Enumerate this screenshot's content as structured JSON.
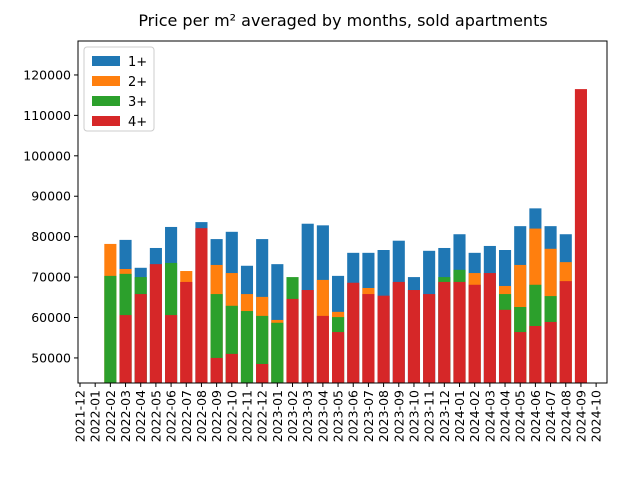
{
  "chart_data": {
    "type": "bar",
    "title": "Price per m² averaged by months, sold apartments",
    "categories": [
      "2021-12",
      "2022-01",
      "2022-02",
      "2022-03",
      "2022-04",
      "2022-05",
      "2022-06",
      "2022-07",
      "2022-08",
      "2022-09",
      "2022-10",
      "2022-11",
      "2022-12",
      "2023-01",
      "2023-02",
      "2023-03",
      "2023-04",
      "2023-05",
      "2023-06",
      "2023-07",
      "2023-08",
      "2023-09",
      "2023-10",
      "2023-11",
      "2023-12",
      "2024-01",
      "2024-02",
      "2024-03",
      "2024-04",
      "2024-05",
      "2024-06",
      "2024-07",
      "2024-08",
      "2024-09",
      "2024-10"
    ],
    "series": [
      {
        "name": "1+",
        "color": "#1f77b4",
        "values": [
          null,
          null,
          null,
          79200,
          72300,
          77200,
          82400,
          null,
          83600,
          79400,
          81200,
          72800,
          79400,
          73200,
          null,
          83200,
          82800,
          70300,
          76000,
          76000,
          76700,
          79000,
          70000,
          76500,
          77200,
          80600,
          76000,
          77700,
          76700,
          82600,
          87000,
          82600,
          80600,
          null,
          null
        ]
      },
      {
        "name": "2+",
        "color": "#ff7f0e",
        "values": [
          null,
          null,
          78200,
          72000,
          null,
          null,
          null,
          71500,
          null,
          73000,
          71000,
          65800,
          65100,
          59400,
          null,
          null,
          69300,
          61400,
          null,
          67300,
          null,
          null,
          null,
          null,
          null,
          null,
          71000,
          null,
          67800,
          73000,
          82000,
          77000,
          73700,
          null,
          null
        ]
      },
      {
        "name": "3+",
        "color": "#2ca02c",
        "values": [
          null,
          null,
          70300,
          70800,
          70000,
          null,
          73500,
          null,
          null,
          65800,
          62900,
          61600,
          60400,
          58700,
          70000,
          null,
          null,
          60100,
          null,
          null,
          null,
          null,
          null,
          null,
          70000,
          71800,
          null,
          null,
          65800,
          62600,
          68100,
          65300,
          null,
          null,
          null
        ]
      },
      {
        "name": "4+",
        "color": "#d62728",
        "values": [
          null,
          null,
          null,
          60600,
          65800,
          73200,
          60600,
          68800,
          82100,
          50000,
          51000,
          null,
          48500,
          null,
          64600,
          66800,
          60400,
          56400,
          68600,
          65800,
          65400,
          68800,
          66800,
          65800,
          68800,
          68800,
          68100,
          71000,
          61900,
          56400,
          57900,
          58900,
          69000,
          116500,
          null
        ]
      }
    ],
    "ylim": [
      43800,
      128400
    ],
    "yticks": [
      50000,
      60000,
      70000,
      80000,
      90000,
      100000,
      110000,
      120000
    ],
    "legend": "upper left"
  }
}
